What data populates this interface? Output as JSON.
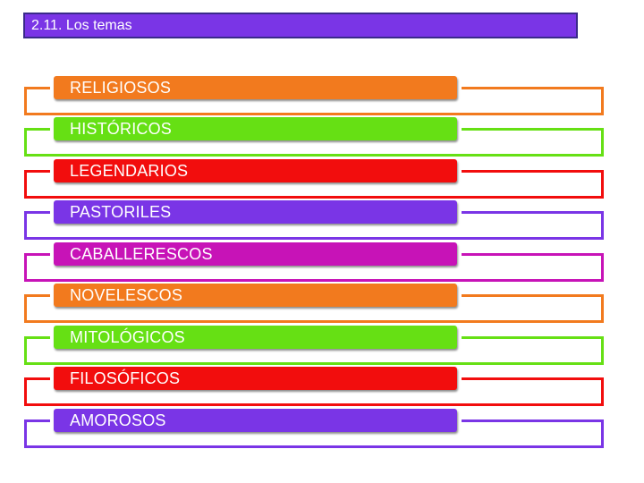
{
  "title": {
    "text": "2.11. Los temas",
    "color": "#7a35e6"
  },
  "items": [
    {
      "label": "RELIGIOSOS",
      "color": "#f27a1e"
    },
    {
      "label": "HISTÓRICOS",
      "color": "#66e014"
    },
    {
      "label": "LEGENDARIOS",
      "color": "#f20d0d"
    },
    {
      "label": "PASTORILES",
      "color": "#7a35e6"
    },
    {
      "label": "CABALLERESCOS",
      "color": "#c713b7"
    },
    {
      "label": "NOVELESCOS",
      "color": "#f27a1e"
    },
    {
      "label": "MITOLÓGICOS",
      "color": "#66e014"
    },
    {
      "label": "FILOSÓFICOS",
      "color": "#f20d0d"
    },
    {
      "label": "AMOROSOS",
      "color": "#7a35e6"
    }
  ]
}
